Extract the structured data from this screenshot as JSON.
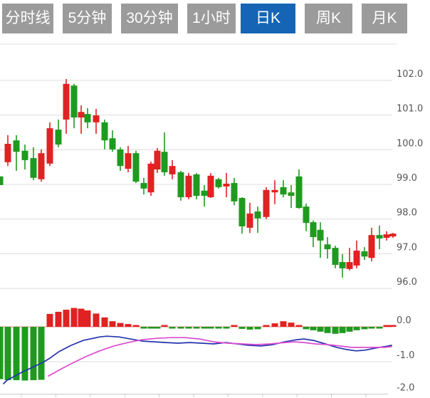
{
  "toolbar": {
    "tabs": [
      {
        "label": "分时线",
        "active": false
      },
      {
        "label": "5分钟",
        "active": false
      },
      {
        "label": "30分钟",
        "active": false
      },
      {
        "label": "1小时",
        "active": false
      },
      {
        "label": "日K",
        "active": true
      },
      {
        "label": "周K",
        "active": false
      },
      {
        "label": "月K",
        "active": false
      }
    ]
  },
  "colors": {
    "tab_bg": "#9b9b9b",
    "tab_active_bg": "#1565b4",
    "tab_text": "#ffffff",
    "up_red": "#e02222",
    "down_green": "#1e9b1e",
    "dif_line_blue": "#2433ae",
    "dea_line_magenta": "#dd4ad0",
    "grid": "#dcdcdc",
    "zero_line_pink": "#ea8080",
    "axis_line": "#c9c9c9",
    "axis_text": "#555555"
  },
  "price_axis": {
    "labels": [
      "102.0",
      "101.0",
      "100.0",
      "99.0",
      "98.0",
      "97.0",
      "96.0"
    ],
    "values": [
      102,
      101,
      100,
      99,
      98,
      97,
      96
    ]
  },
  "macd_axis": {
    "labels": [
      "0.0",
      "-1.0",
      "-2.0"
    ],
    "values": [
      0,
      -1,
      -2
    ]
  },
  "chart_data": {
    "type": "candlestick_with_macd",
    "title": "",
    "price_panel": {
      "ylim": [
        95.9,
        103.1
      ],
      "grid": true,
      "up_color_meaning": "red = close >= open (CN convention)"
    },
    "macd_panel": {
      "ylim": [
        -2.1,
        0.6
      ],
      "zero_line": 0,
      "gridline_at": -1
    },
    "candles_xohlc": [
      [
        0,
        99.23,
        99.23,
        98.98,
        98.98
      ],
      [
        11,
        99.64,
        100.42,
        99.53,
        100.17
      ],
      [
        23,
        100.27,
        100.42,
        99.39,
        99.94
      ],
      [
        35,
        99.97,
        100.15,
        99.43,
        99.7
      ],
      [
        47,
        99.76,
        100.07,
        99.12,
        99.19
      ],
      [
        58,
        99.15,
        100.01,
        99.08,
        99.9
      ],
      [
        70,
        99.6,
        100.79,
        99.53,
        100.62
      ],
      [
        82,
        100.58,
        100.87,
        100.07,
        100.15
      ],
      [
        93,
        100.87,
        102.04,
        100.46,
        101.9
      ],
      [
        104,
        101.85,
        101.9,
        100.62,
        100.93
      ],
      [
        114,
        100.93,
        101.28,
        100.46,
        101.09
      ],
      [
        123,
        101.03,
        101.2,
        100.62,
        100.79
      ],
      [
        135,
        100.79,
        101.18,
        100.46,
        100.99
      ],
      [
        147,
        100.79,
        100.87,
        100.01,
        100.27
      ],
      [
        158,
        100.33,
        100.56,
        99.94,
        100.01
      ],
      [
        169,
        100.01,
        100.07,
        99.39,
        99.53
      ],
      [
        180,
        99.45,
        100.11,
        99.35,
        99.9
      ],
      [
        191,
        99.9,
        99.97,
        99.04,
        99.08
      ],
      [
        202,
        99.04,
        99.19,
        98.71,
        98.88
      ],
      [
        212,
        98.77,
        99.66,
        98.67,
        99.6
      ],
      [
        221,
        99.43,
        100.05,
        99.33,
        99.97
      ],
      [
        231,
        99.94,
        100.5,
        99.25,
        99.35
      ],
      [
        242,
        99.29,
        99.7,
        99.15,
        99.53
      ],
      [
        254,
        99.35,
        99.39,
        98.53,
        98.63
      ],
      [
        265,
        98.63,
        99.33,
        98.57,
        99.25
      ],
      [
        276,
        99.29,
        99.33,
        98.57,
        98.67
      ],
      [
        287,
        98.82,
        98.98,
        98.36,
        98.67
      ],
      [
        296,
        98.63,
        99.33,
        98.61,
        99.25
      ],
      [
        307,
        99.15,
        99.19,
        98.88,
        98.92
      ],
      [
        318,
        98.94,
        99.33,
        98.63,
        99.02
      ],
      [
        329,
        99.04,
        99.19,
        98.4,
        98.51
      ],
      [
        340,
        98.61,
        98.63,
        97.58,
        97.79
      ],
      [
        351,
        97.75,
        98.47,
        97.6,
        98.16
      ],
      [
        362,
        98.22,
        98.36,
        97.6,
        98.02
      ],
      [
        374,
        98.06,
        98.92,
        98.0,
        98.84
      ],
      [
        386,
        98.77,
        99.12,
        98.43,
        98.84
      ],
      [
        398,
        98.92,
        99.12,
        98.63,
        98.71
      ],
      [
        409,
        98.77,
        98.98,
        98.32,
        98.67
      ],
      [
        420,
        99.23,
        99.43,
        98.3,
        98.32
      ],
      [
        430,
        98.36,
        98.45,
        97.65,
        97.89
      ],
      [
        440,
        97.91,
        97.96,
        97.19,
        97.48
      ],
      [
        450,
        97.69,
        97.91,
        96.88,
        97.38
      ],
      [
        460,
        97.27,
        97.48,
        96.86,
        97.13
      ],
      [
        471,
        97.17,
        97.23,
        96.58,
        96.68
      ],
      [
        481,
        96.76,
        96.99,
        96.31,
        96.58
      ],
      [
        491,
        96.56,
        97.17,
        96.52,
        96.76
      ],
      [
        501,
        96.66,
        97.38,
        96.58,
        97.09
      ],
      [
        512,
        97.07,
        97.19,
        96.82,
        96.92
      ],
      [
        522,
        96.88,
        97.75,
        96.78,
        97.54
      ],
      [
        533,
        97.54,
        97.81,
        97.13,
        97.44
      ],
      [
        543,
        97.46,
        97.65,
        97.38,
        97.56
      ],
      [
        552,
        97.5,
        97.6,
        97.46,
        97.58
      ]
    ],
    "macd": {
      "histogram_xv": [
        [
          0,
          -1.5
        ],
        [
          11,
          -1.53
        ],
        [
          23,
          -1.53
        ],
        [
          35,
          -1.54
        ],
        [
          47,
          -1.53
        ],
        [
          58,
          -1.52
        ],
        [
          70,
          0.37
        ],
        [
          82,
          0.43
        ],
        [
          93,
          0.49
        ],
        [
          104,
          0.54
        ],
        [
          114,
          0.52
        ],
        [
          123,
          0.47
        ],
        [
          135,
          0.38
        ],
        [
          147,
          0.27
        ],
        [
          158,
          0.16
        ],
        [
          169,
          0.11
        ],
        [
          180,
          0.08
        ],
        [
          191,
          0.04
        ],
        [
          202,
          -0.05
        ],
        [
          212,
          -0.05
        ],
        [
          221,
          -0.05
        ],
        [
          231,
          0.03
        ],
        [
          242,
          -0.04
        ],
        [
          254,
          -0.05
        ],
        [
          265,
          -0.05
        ],
        [
          276,
          -0.04
        ],
        [
          287,
          -0.04
        ],
        [
          296,
          -0.05
        ],
        [
          307,
          -0.05
        ],
        [
          318,
          -0.03
        ],
        [
          329,
          0.03
        ],
        [
          340,
          -0.06
        ],
        [
          351,
          -0.08
        ],
        [
          362,
          -0.07
        ],
        [
          374,
          0.04
        ],
        [
          386,
          0.1
        ],
        [
          398,
          0.16
        ],
        [
          409,
          0.12
        ],
        [
          420,
          0.05
        ],
        [
          430,
          -0.07
        ],
        [
          440,
          -0.1
        ],
        [
          450,
          -0.14
        ],
        [
          460,
          -0.18
        ],
        [
          471,
          -0.2
        ],
        [
          481,
          -0.18
        ],
        [
          491,
          -0.14
        ],
        [
          501,
          -0.1
        ],
        [
          512,
          -0.07
        ],
        [
          522,
          -0.05
        ],
        [
          533,
          -0.04
        ],
        [
          543,
          0.05
        ],
        [
          552,
          0.04
        ]
      ],
      "dif_xv": [
        [
          5,
          -1.63
        ],
        [
          10,
          -1.53
        ],
        [
          30,
          -1.31
        ],
        [
          50,
          -1.12
        ],
        [
          62,
          -1.0
        ],
        [
          70,
          -0.9
        ],
        [
          83,
          -0.71
        ],
        [
          100,
          -0.53
        ],
        [
          117,
          -0.39
        ],
        [
          140,
          -0.29
        ],
        [
          150,
          -0.27
        ],
        [
          167,
          -0.29
        ],
        [
          183,
          -0.35
        ],
        [
          200,
          -0.41
        ],
        [
          217,
          -0.43
        ],
        [
          233,
          -0.45
        ],
        [
          250,
          -0.47
        ],
        [
          267,
          -0.45
        ],
        [
          283,
          -0.47
        ],
        [
          300,
          -0.49
        ],
        [
          317,
          -0.45
        ],
        [
          333,
          -0.49
        ],
        [
          350,
          -0.53
        ],
        [
          367,
          -0.55
        ],
        [
          383,
          -0.51
        ],
        [
          400,
          -0.43
        ],
        [
          417,
          -0.37
        ],
        [
          427,
          -0.35
        ],
        [
          440,
          -0.39
        ],
        [
          457,
          -0.49
        ],
        [
          473,
          -0.59
        ],
        [
          487,
          -0.65
        ],
        [
          500,
          -0.69
        ],
        [
          513,
          -0.67
        ],
        [
          527,
          -0.61
        ],
        [
          540,
          -0.57
        ],
        [
          550,
          -0.53
        ]
      ],
      "dea_xv": [
        [
          68,
          -1.41
        ],
        [
          85,
          -1.22
        ],
        [
          100,
          -1.06
        ],
        [
          120,
          -0.86
        ],
        [
          140,
          -0.69
        ],
        [
          160,
          -0.55
        ],
        [
          180,
          -0.45
        ],
        [
          200,
          -0.37
        ],
        [
          220,
          -0.33
        ],
        [
          240,
          -0.31
        ],
        [
          260,
          -0.31
        ],
        [
          280,
          -0.35
        ],
        [
          300,
          -0.43
        ],
        [
          320,
          -0.47
        ],
        [
          340,
          -0.49
        ],
        [
          360,
          -0.51
        ],
        [
          380,
          -0.49
        ],
        [
          400,
          -0.45
        ],
        [
          413,
          -0.43
        ],
        [
          427,
          -0.45
        ],
        [
          443,
          -0.49
        ],
        [
          460,
          -0.51
        ],
        [
          477,
          -0.55
        ],
        [
          493,
          -0.59
        ],
        [
          510,
          -0.59
        ],
        [
          527,
          -0.59
        ],
        [
          540,
          -0.59
        ],
        [
          550,
          -0.57
        ]
      ]
    }
  }
}
